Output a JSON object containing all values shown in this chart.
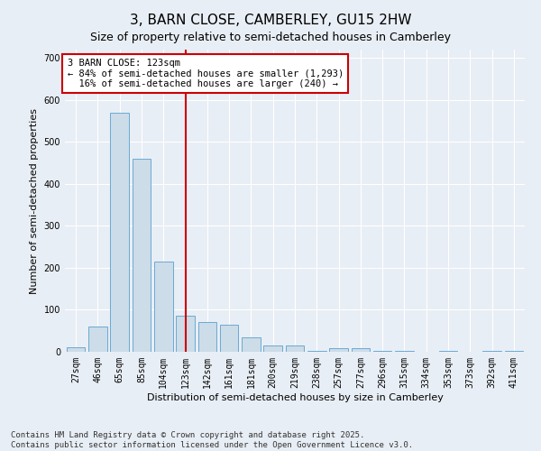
{
  "title": "3, BARN CLOSE, CAMBERLEY, GU15 2HW",
  "subtitle": "Size of property relative to semi-detached houses in Camberley",
  "xlabel": "Distribution of semi-detached houses by size in Camberley",
  "ylabel": "Number of semi-detached properties",
  "categories": [
    "27sqm",
    "46sqm",
    "65sqm",
    "85sqm",
    "104sqm",
    "123sqm",
    "142sqm",
    "161sqm",
    "181sqm",
    "200sqm",
    "219sqm",
    "238sqm",
    "257sqm",
    "277sqm",
    "296sqm",
    "315sqm",
    "334sqm",
    "353sqm",
    "373sqm",
    "392sqm",
    "411sqm"
  ],
  "values": [
    10,
    60,
    570,
    460,
    215,
    85,
    70,
    65,
    35,
    15,
    15,
    3,
    8,
    8,
    3,
    3,
    0,
    3,
    0,
    3,
    3
  ],
  "bar_color": "#ccdce8",
  "bar_edge_color": "#6aaad4",
  "vline_x_idx": 5,
  "vline_color": "#cc0000",
  "annotation_text": "3 BARN CLOSE: 123sqm\n← 84% of semi-detached houses are smaller (1,293)\n  16% of semi-detached houses are larger (240) →",
  "annotation_box_color": "#cc0000",
  "ylim": [
    0,
    720
  ],
  "yticks": [
    0,
    100,
    200,
    300,
    400,
    500,
    600,
    700
  ],
  "background_color": "#e8eef5",
  "plot_bg_color": "#e8eef5",
  "footer_text": "Contains HM Land Registry data © Crown copyright and database right 2025.\nContains public sector information licensed under the Open Government Licence v3.0.",
  "title_fontsize": 11,
  "subtitle_fontsize": 9,
  "xlabel_fontsize": 8,
  "ylabel_fontsize": 8,
  "tick_fontsize": 7,
  "annotation_fontsize": 7.5,
  "footer_fontsize": 6.5
}
